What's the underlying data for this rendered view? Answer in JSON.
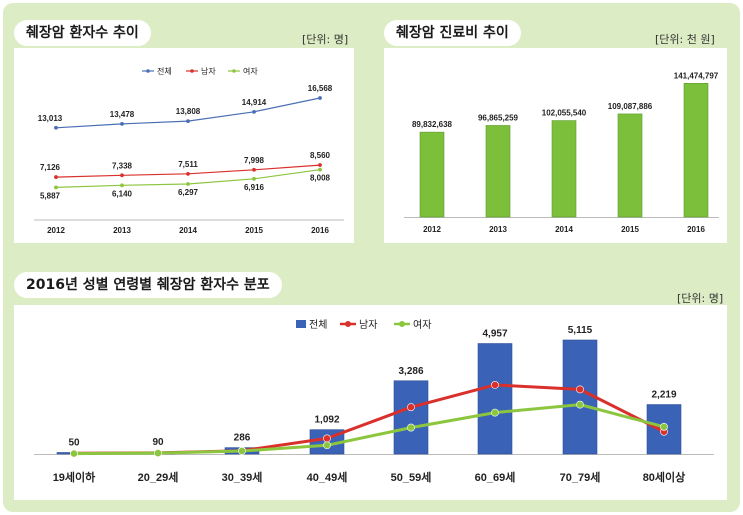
{
  "panels": {
    "top_left": {
      "title": "췌장암 환자수 추이",
      "unit": "[단위: 명]"
    },
    "top_right": {
      "title": "췌장암 진료비 추이",
      "unit": "[단위: 천 원]"
    },
    "bottom": {
      "title": "2016년 성별 연령별 췌장암 환자수 분포",
      "unit": "[단위: 명]"
    }
  },
  "colors": {
    "frame_bg": "#dcecc4",
    "series_total": "#4a6fb5",
    "series_male": "#d9302c",
    "series_female": "#8cc63f",
    "bar_green": "#7cbf3a",
    "bar_blue": "#3a63b8"
  },
  "chart_data": [
    {
      "type": "line",
      "categories": [
        "2012",
        "2013",
        "2014",
        "2015",
        "2016"
      ],
      "series": [
        {
          "name": "전체",
          "values": [
            13013,
            13478,
            13808,
            14914,
            16568
          ],
          "labels": [
            "13,013",
            "13,478",
            "13,808",
            "14,914",
            "16,568"
          ]
        },
        {
          "name": "남자",
          "values": [
            7126,
            7338,
            7511,
            7998,
            8560
          ],
          "labels": [
            "7,126",
            "7,338",
            "7,511",
            "7,998",
            "8,560"
          ]
        },
        {
          "name": "여자",
          "values": [
            5887,
            6140,
            6297,
            6916,
            8008
          ],
          "labels": [
            "5,887",
            "6,140",
            "6,297",
            "6,916",
            "8,008"
          ]
        }
      ],
      "legend": "top",
      "grid": false
    },
    {
      "type": "bar",
      "categories": [
        "2012",
        "2013",
        "2014",
        "2015",
        "2016"
      ],
      "values": [
        89832638,
        96865259,
        102055540,
        109087886,
        141474797
      ],
      "labels": [
        "89,832,638",
        "96,865,259",
        "102,055,540",
        "109,087,886",
        "141,474,797"
      ],
      "grid": false
    },
    {
      "type": "bar",
      "categories": [
        "19세이하",
        "20_29세",
        "30_39세",
        "40_49세",
        "50_59세",
        "60_69세",
        "70_79세",
        "80세이상"
      ],
      "series": [
        {
          "name": "전체",
          "type": "bar",
          "values": [
            50,
            90,
            286,
            1092,
            3286,
            4957,
            5115,
            2219
          ],
          "labels": [
            "50",
            "90",
            "286",
            "1,092",
            "3,286",
            "4,957",
            "5,115",
            "2,219"
          ]
        },
        {
          "name": "남자",
          "type": "line",
          "values": [
            30,
            50,
            150,
            700,
            2100,
            3100,
            2900,
            1000
          ]
        },
        {
          "name": "여자",
          "type": "line",
          "values": [
            20,
            40,
            136,
            392,
            1186,
            1857,
            2215,
            1219
          ]
        }
      ],
      "legend": "top",
      "grid": false
    }
  ]
}
